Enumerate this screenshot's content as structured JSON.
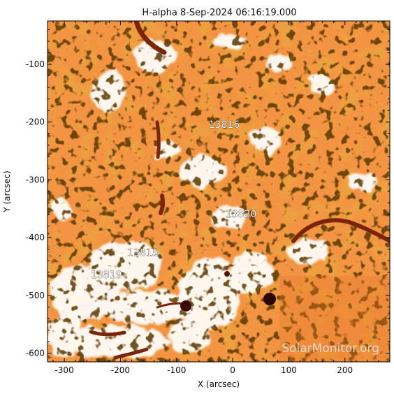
{
  "title": "H-alpha   8-Sep-2024 06:16:19.000",
  "x_axis": {
    "label": "X (arcsec)",
    "range": [
      -330,
      280
    ],
    "ticks": [
      {
        "value": -300,
        "label": "-300"
      },
      {
        "value": -200,
        "label": "-200"
      },
      {
        "value": -100,
        "label": "-100"
      },
      {
        "value": 0,
        "label": "0"
      },
      {
        "value": 100,
        "label": "100"
      },
      {
        "value": 200,
        "label": "200"
      }
    ]
  },
  "y_axis": {
    "label": "Y (arcsec)",
    "range": [
      -615,
      -25
    ],
    "ticks": [
      {
        "value": -100,
        "label": "-100"
      },
      {
        "value": -200,
        "label": "-200"
      },
      {
        "value": -300,
        "label": "-300"
      },
      {
        "value": -400,
        "label": "-400"
      },
      {
        "value": -500,
        "label": "-500"
      },
      {
        "value": -600,
        "label": "-600"
      }
    ]
  },
  "regions": [
    {
      "label": "13816",
      "x": -15,
      "y": -210
    },
    {
      "label": "13820",
      "x": 15,
      "y": -365
    },
    {
      "label": "13815",
      "x": -160,
      "y": -432
    },
    {
      "label": "13819",
      "x": -225,
      "y": -470
    }
  ],
  "watermark": "SolarMonitor.org",
  "colors": {
    "background": "#ffffff",
    "image_base": "#f5923a",
    "image_dark": "#8a2a05",
    "plage": "#fff4ea"
  }
}
